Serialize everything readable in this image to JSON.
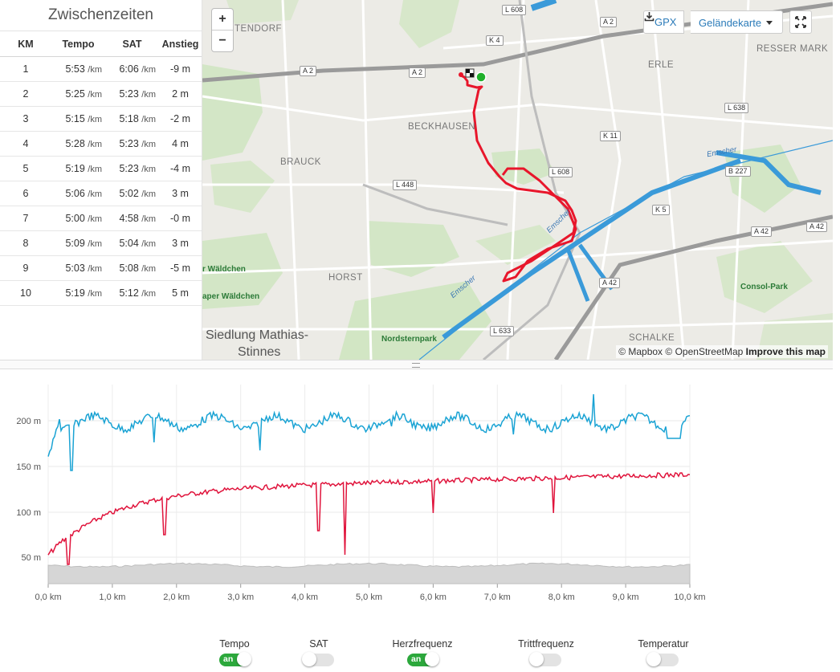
{
  "splits": {
    "title": "Zwischenzeiten",
    "headers": {
      "km": "KM",
      "tempo": "Tempo",
      "sat": "SAT",
      "rise": "Anstieg"
    },
    "unit": "/km",
    "rows": [
      {
        "km": "1",
        "tempo": "5:53",
        "sat": "6:06",
        "rise": "-9 m"
      },
      {
        "km": "2",
        "tempo": "5:25",
        "sat": "5:23",
        "rise": "2 m"
      },
      {
        "km": "3",
        "tempo": "5:15",
        "sat": "5:18",
        "rise": "-2 m"
      },
      {
        "km": "4",
        "tempo": "5:28",
        "sat": "5:23",
        "rise": "4 m"
      },
      {
        "km": "5",
        "tempo": "5:19",
        "sat": "5:23",
        "rise": "-4 m"
      },
      {
        "km": "6",
        "tempo": "5:06",
        "sat": "5:02",
        "rise": "3 m"
      },
      {
        "km": "7",
        "tempo": "5:00",
        "sat": "4:58",
        "rise": "-0 m"
      },
      {
        "km": "8",
        "tempo": "5:09",
        "sat": "5:04",
        "rise": "3 m"
      },
      {
        "km": "9",
        "tempo": "5:03",
        "sat": "5:08",
        "rise": "-5 m"
      },
      {
        "km": "10",
        "tempo": "5:19",
        "sat": "5:12",
        "rise": "5 m"
      }
    ]
  },
  "map": {
    "zoom_in": "+",
    "zoom_out": "−",
    "gpx_label": "GPX",
    "terrain_label": "Geländekarte",
    "attribution_mapbox": "© Mapbox",
    "attribution_osm": "© OpenStreetMap",
    "attribution_improve": "Improve this map",
    "places": [
      "TENDORF",
      "ERLE",
      "RESSER MARK",
      "BECKHAUSEN",
      "BRAUCK",
      "HORST",
      "SCHALKE"
    ],
    "settlement": [
      "Siedlung Mathias-",
      "Stinnes"
    ],
    "parks": [
      "r Wäldchen",
      "aper Wäldchen",
      "Nordsternpark",
      "Consol-Park"
    ],
    "river": "Emscher",
    "roads": [
      "L 608",
      "A 2",
      "K 4",
      "A 2",
      "A 2",
      "L 638",
      "K 11",
      "L 608",
      "B 227",
      "L 448",
      "K 5",
      "A 42",
      "A 42",
      "A 42",
      "L 633"
    ],
    "colors": {
      "route": "#e8162b",
      "start": "#20b02a",
      "water": "#3a9ad9",
      "park": "#c5e2b4"
    }
  },
  "chart": {
    "y_ticks": [
      "200 m",
      "150 m",
      "100 m",
      "50 m"
    ],
    "x_ticks": [
      "0,0 km",
      "1,0 km",
      "2,0 km",
      "3,0 km",
      "4,0 km",
      "5,0 km",
      "6,0 km",
      "7,0 km",
      "8,0 km",
      "9,0 km",
      "10,0 km"
    ],
    "colors": {
      "tempo": "#1aa3d4",
      "heart": "#e0143c",
      "elevation": "#d6d6d6"
    }
  },
  "toggles": [
    {
      "label": "Tempo",
      "state": "an"
    },
    {
      "label": "SAT",
      "state": ""
    },
    {
      "label": "Herzfrequenz",
      "state": "an"
    },
    {
      "label": "Trittfrequenz",
      "state": ""
    },
    {
      "label": "Temperatur",
      "state": ""
    }
  ]
}
